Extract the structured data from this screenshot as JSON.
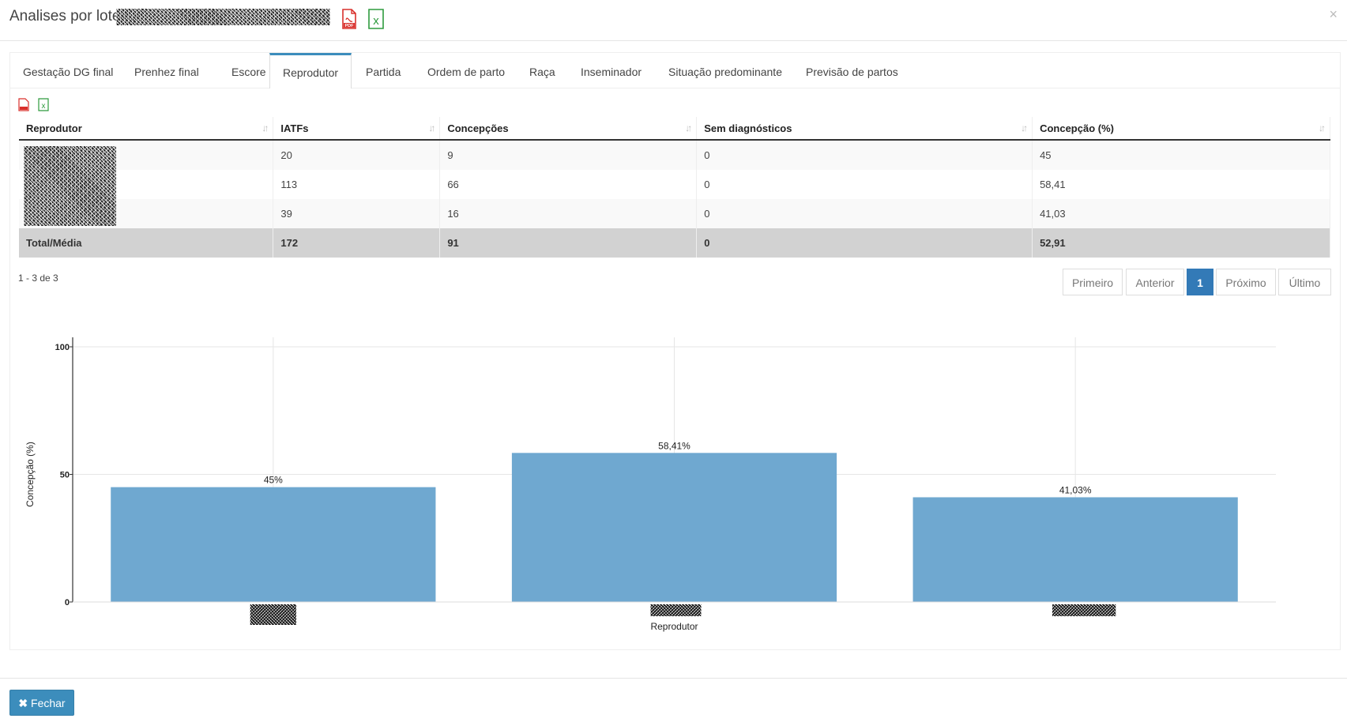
{
  "header": {
    "title": "Analises por lotes",
    "close_icon": "×"
  },
  "tabs": [
    {
      "label": "Gestação DG final"
    },
    {
      "label": "Prenhez final"
    },
    {
      "label": "Escore"
    },
    {
      "label": "Reprodutor",
      "active": true
    },
    {
      "label": "Partida"
    },
    {
      "label": "Ordem de parto"
    },
    {
      "label": "Raça"
    },
    {
      "label": "Inseminador"
    },
    {
      "label": "Situação predominante"
    },
    {
      "label": "Previsão de partos"
    }
  ],
  "table": {
    "columns": [
      "Reprodutor",
      "IATFs",
      "Concepções",
      "Sem diagnósticos",
      "Concepção (%)"
    ],
    "rows": [
      [
        "",
        "20",
        "9",
        "0",
        "45"
      ],
      [
        "",
        "113",
        "66",
        "0",
        "58,41"
      ],
      [
        "",
        "39",
        "16",
        "0",
        "41,03"
      ]
    ],
    "total": [
      "Total/Média",
      "172",
      "91",
      "0",
      "52,91"
    ]
  },
  "pagination": {
    "count_text": "1 - 3 de 3",
    "first": "Primeiro",
    "prev": "Anterior",
    "current": "1",
    "next": "Próximo",
    "last": "Último"
  },
  "chart_data": {
    "type": "bar",
    "categories": [
      "",
      "",
      ""
    ],
    "values": [
      45,
      58.41,
      41.03
    ],
    "data_labels": [
      "45%",
      "58,41%",
      "41,03%"
    ],
    "xlabel": "Reprodutor",
    "ylabel": "Concepção (%)",
    "ylim": [
      0,
      100
    ],
    "yticks": [
      "0",
      "50",
      "100"
    ],
    "grid": true,
    "bar_color": "#6fa8d0"
  },
  "footer": {
    "close_label": "Fechar"
  }
}
